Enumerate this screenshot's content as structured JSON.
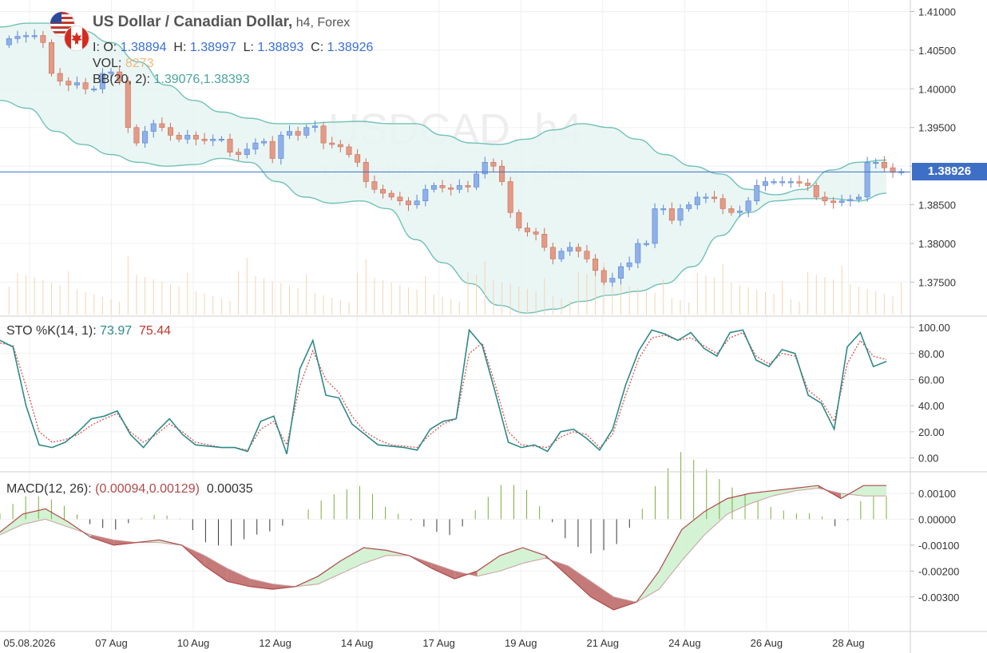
{
  "header": {
    "pair_name": "US Dollar / Canadian Dollar,",
    "timeframe": "h4,",
    "market": "Forex",
    "ohlc": {
      "o_label": "O:",
      "o": "1.38894",
      "h_label": "H:",
      "h": "1.38997",
      "l_label": "L:",
      "l": "1.38893",
      "c_label": "C:",
      "c": "1.38926"
    },
    "vol_label": "VOL:",
    "vol_value": "8273",
    "bb_label": "BB(20, 2):",
    "bb_values": "1.39076,1.38393",
    "watermark_symbol": "USDCAD, h4",
    "watermark_name": "US Dollar / Canadian Dollar"
  },
  "current_price_label": "1.38926",
  "icons": {
    "us_flag": "us-flag-icon",
    "ca_flag": "canada-flag-icon"
  },
  "colors": {
    "bull": "#8fb0e8",
    "bear": "#e39a86",
    "bb_line": "#6fc2b8",
    "bb_fill": "#e6f5f2",
    "price_line": "#3e6fc6",
    "sto_k": "#2e8a88",
    "sto_d": "#d9534f",
    "macd_line": "#b04a4a",
    "macd_hist": "#3a3a3a",
    "macd_hist_pos": "#7cae3c",
    "fill_green": "#d4f2d4",
    "fill_red": "#c47a78",
    "volume": "#f6d3b0"
  },
  "x_axis": {
    "labels": [
      "05.08.2026",
      "07 Aug",
      "10 Aug",
      "12 Aug",
      "14 Aug",
      "17 Aug",
      "19 Aug",
      "21 Aug",
      "24 Aug",
      "26 Aug",
      "28 Aug"
    ],
    "label_bar_index": [
      2,
      10,
      18,
      26,
      34,
      42,
      50,
      58,
      66,
      74,
      82
    ]
  },
  "chart_data": [
    {
      "type": "candlestick",
      "title": "US Dollar / Canadian Dollar, h4, Forex",
      "ylim": [
        1.3707,
        1.4115
      ],
      "y_ticks": [
        "1.41000",
        "1.40500",
        "1.40000",
        "1.39500",
        "1.39000",
        "1.38500",
        "1.38000",
        "1.37500"
      ],
      "y_tick_values": [
        1.41,
        1.405,
        1.4,
        1.395,
        1.39,
        1.385,
        1.38,
        1.375
      ],
      "grid": true,
      "current_price": 1.38926,
      "closes": [
        1.4065,
        1.4068,
        1.4069,
        1.4069,
        1.406,
        1.402,
        1.401,
        1.4005,
        1.4008,
        1.4,
        1.4,
        1.402,
        1.4022,
        1.401,
        1.395,
        1.393,
        1.3945,
        1.3955,
        1.395,
        1.394,
        1.3935,
        1.394,
        1.3935,
        1.3933,
        1.3935,
        1.3935,
        1.3918,
        1.3915,
        1.3922,
        1.393,
        1.3932,
        1.391,
        1.394,
        1.3945,
        1.394,
        1.395,
        1.3952,
        1.393,
        1.3928,
        1.3925,
        1.3915,
        1.3905,
        1.388,
        1.387,
        1.3865,
        1.386,
        1.3855,
        1.385,
        1.3855,
        1.387,
        1.3875,
        1.3872,
        1.387,
        1.3875,
        1.3873,
        1.389,
        1.3905,
        1.39,
        1.388,
        1.384,
        1.382,
        1.3815,
        1.3812,
        1.3795,
        1.378,
        1.379,
        1.3795,
        1.379,
        1.378,
        1.3765,
        1.375,
        1.3755,
        1.377,
        1.3775,
        1.38,
        1.38,
        1.3845,
        1.3845,
        1.383,
        1.3845,
        1.385,
        1.386,
        1.386,
        1.3858,
        1.3845,
        1.384,
        1.3842,
        1.3855,
        1.3875,
        1.388,
        1.388,
        1.388,
        1.388,
        1.3878,
        1.3875,
        1.386,
        1.3855,
        1.3853,
        1.3855,
        1.3857,
        1.386,
        1.3905,
        1.3905,
        1.3898,
        1.3892,
        1.3893
      ],
      "opens_note": "open of each bar equals previous close",
      "bb_upper": [
        1.408,
        1.4085,
        1.4085,
        1.4075,
        1.406,
        1.4035,
        1.4005,
        1.3985,
        1.397,
        1.3962,
        1.3955,
        1.3955,
        1.3957,
        1.3958,
        1.3955,
        1.3955,
        1.394,
        1.393,
        1.3928,
        1.3935,
        1.3947,
        1.3955,
        1.395,
        1.3935,
        1.3915,
        1.39,
        1.389,
        1.387,
        1.3863,
        1.387,
        1.3895,
        1.3905,
        1.3908
      ],
      "bb_lower": [
        1.3985,
        1.3975,
        1.3945,
        1.3928,
        1.3915,
        1.3905,
        1.39,
        1.3902,
        1.391,
        1.3905,
        1.388,
        1.386,
        1.3852,
        1.3855,
        1.3845,
        1.3805,
        1.3775,
        1.3748,
        1.372,
        1.371,
        1.3715,
        1.3725,
        1.3733,
        1.3738,
        1.3748,
        1.377,
        1.381,
        1.384,
        1.3855,
        1.3858,
        1.3858,
        1.3855,
        1.3865
      ]
    },
    {
      "type": "line",
      "title": "STO %K(14, 1):",
      "k_value": "73.97",
      "d_value": "75.44",
      "ylim": [
        -10,
        108
      ],
      "y_ticks": [
        "100.00",
        "80.00",
        "60.00",
        "40.00",
        "20.00",
        "0.00"
      ],
      "y_tick_values": [
        100,
        80,
        60,
        40,
        20,
        0
      ],
      "series": [
        {
          "values": [
            90,
            85,
            40,
            10,
            8,
            12,
            20,
            30,
            32,
            36,
            18,
            8,
            20,
            30,
            18,
            10,
            9,
            8,
            8,
            5,
            28,
            32,
            3,
            68,
            90,
            48,
            46,
            26,
            18,
            10,
            9,
            8,
            6,
            22,
            28,
            30,
            98,
            86,
            50,
            12,
            8,
            10,
            5,
            20,
            22,
            15,
            6,
            22,
            56,
            82,
            98,
            95,
            90,
            96,
            84,
            78,
            96,
            98,
            75,
            70,
            83,
            80,
            48,
            42,
            22,
            85,
            96,
            70,
            73.97
          ]
        },
        {
          "values": [
            88,
            86,
            55,
            20,
            12,
            14,
            18,
            25,
            30,
            34,
            20,
            12,
            18,
            26,
            20,
            12,
            10,
            8,
            8,
            6,
            22,
            28,
            10,
            55,
            82,
            60,
            50,
            32,
            20,
            14,
            10,
            9,
            8,
            18,
            26,
            30,
            80,
            88,
            56,
            20,
            10,
            9,
            8,
            16,
            20,
            18,
            8,
            18,
            48,
            76,
            92,
            94,
            90,
            92,
            86,
            80,
            92,
            96,
            78,
            72,
            80,
            78,
            52,
            44,
            28,
            72,
            90,
            78,
            75.44
          ]
        }
      ]
    },
    {
      "type": "line",
      "title": "MACD(12, 26):",
      "values_text": "(0.00094,0.00129)",
      "hist_value": "0.00035",
      "ylim": [
        -0.0043,
        0.0018
      ],
      "y_ticks": [
        "0.00100",
        "0.00000",
        "-0.00100",
        "-0.00200",
        "-0.00300"
      ],
      "y_tick_values": [
        0.001,
        0.0,
        -0.001,
        -0.002,
        -0.003
      ],
      "series": [
        {
          "values": [
            -0.0005,
            0.0002,
            0.0004,
            -0.0001,
            -0.0007,
            -0.001,
            -0.0009,
            -0.0008,
            -0.001,
            -0.0018,
            -0.0024,
            -0.0026,
            -0.0027,
            -0.0026,
            -0.0022,
            -0.0016,
            -0.0011,
            -0.0012,
            -0.0014,
            -0.0019,
            -0.0023,
            -0.002,
            -0.0014,
            -0.0011,
            -0.0014,
            -0.0022,
            -0.003,
            -0.0035,
            -0.0032,
            -0.002,
            -0.0004,
            0.0003,
            0.0008,
            0.001,
            0.0011,
            0.0012,
            0.0013,
            0.0008,
            0.0013,
            0.0013
          ]
        },
        {
          "values": [
            -0.0006,
            -0.0002,
            0.0,
            -0.0003,
            -0.0006,
            -0.0008,
            -0.0009,
            -0.0009,
            -0.001,
            -0.0014,
            -0.0019,
            -0.0023,
            -0.0025,
            -0.0026,
            -0.0025,
            -0.0021,
            -0.0017,
            -0.0014,
            -0.0014,
            -0.0017,
            -0.002,
            -0.0022,
            -0.002,
            -0.0017,
            -0.0015,
            -0.0018,
            -0.0024,
            -0.003,
            -0.0032,
            -0.0027,
            -0.0016,
            -0.0006,
            0.0002,
            0.0006,
            0.0009,
            0.0011,
            0.0012,
            0.001,
            0.0009,
            0.0009
          ]
        }
      ]
    }
  ]
}
